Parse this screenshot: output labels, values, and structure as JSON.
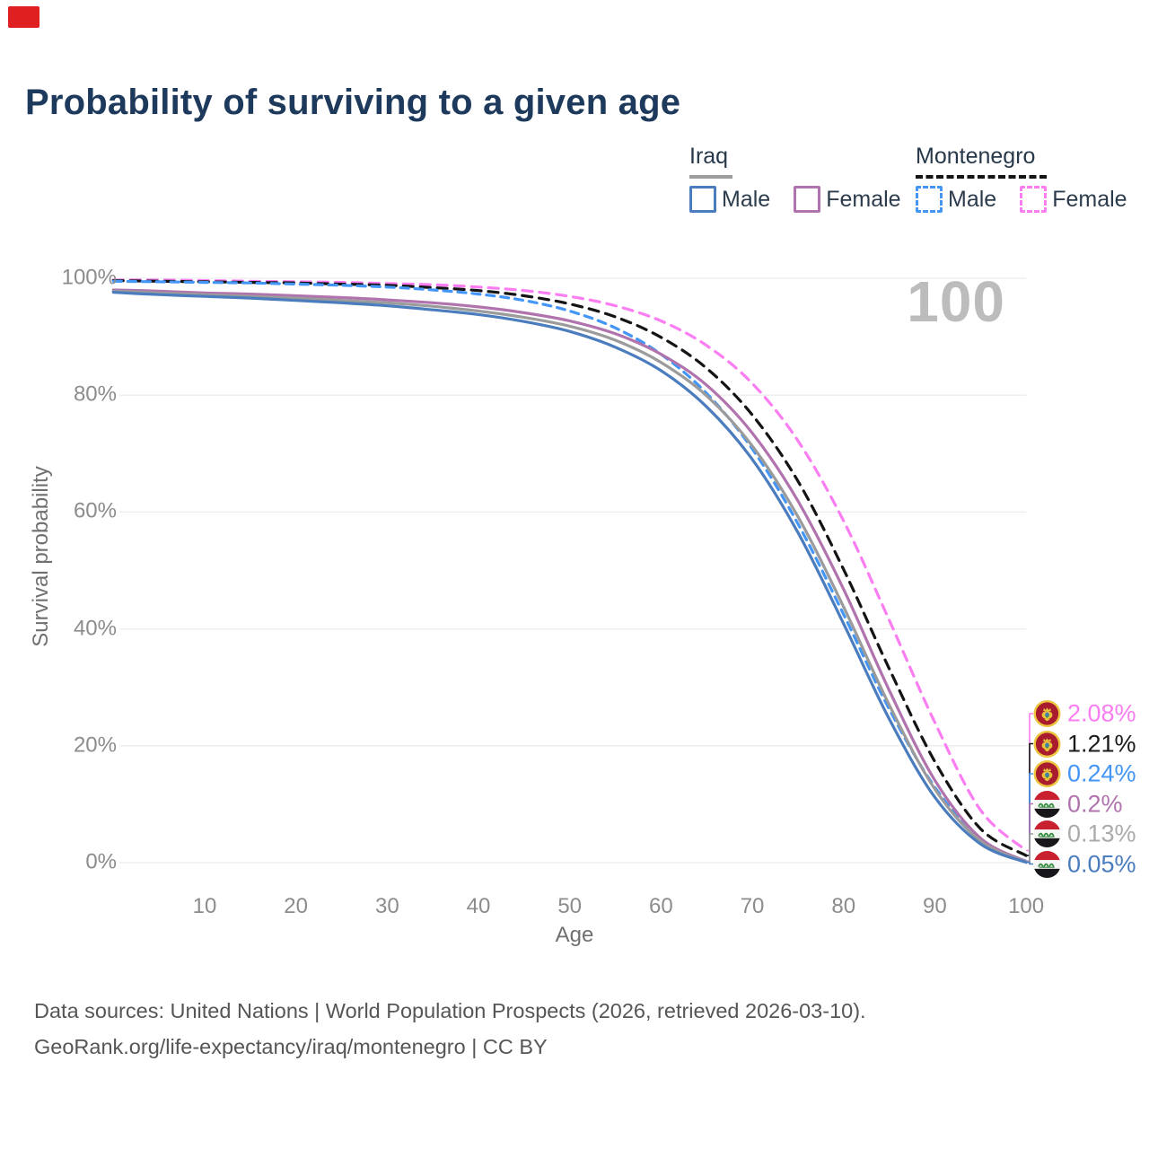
{
  "overlay_marker": {
    "color": "#e02020"
  },
  "title": "Probability of surviving to a given age",
  "watermark": "100",
  "legend": {
    "groups": [
      {
        "label": "Iraq",
        "underline_style": "solid",
        "underline_color": "#9d9d9d",
        "underline_width": 48,
        "items": [
          {
            "label": "Male",
            "color": "#4a7cbe",
            "dashed": false
          },
          {
            "label": "Female",
            "color": "#b173ae",
            "dashed": false
          }
        ]
      },
      {
        "label": "Montenegro",
        "underline_style": "dashed",
        "underline_color": "#141414",
        "underline_width": 146,
        "items": [
          {
            "label": "Male",
            "color": "#4496f6",
            "dashed": true
          },
          {
            "label": "Female",
            "color": "#fb7df2",
            "dashed": true
          }
        ]
      }
    ]
  },
  "chart_data": {
    "type": "line",
    "title": "Probability of surviving to a given age",
    "xlabel": "Age",
    "ylabel": "Survival probability",
    "xlim": [
      0,
      100
    ],
    "ylim": [
      0,
      100
    ],
    "x_ticks": [
      10,
      20,
      30,
      40,
      50,
      60,
      70,
      80,
      90,
      100
    ],
    "y_ticks": [
      0,
      20,
      40,
      60,
      80,
      100
    ],
    "y_tick_suffix": "%",
    "grid": "horizontal-only",
    "legend_position": "top-right",
    "x": [
      0,
      5,
      10,
      15,
      20,
      25,
      30,
      35,
      40,
      45,
      50,
      55,
      60,
      65,
      70,
      75,
      80,
      85,
      90,
      95,
      100
    ],
    "series": [
      {
        "name": "Montenegro Female",
        "country": "Montenegro",
        "sex": "Female",
        "color": "#fb7df2",
        "dash": true,
        "flag": "montenegro",
        "end_label": "2.08%",
        "end_label_color": "#fb7df2",
        "values": [
          99.7,
          99.7,
          99.6,
          99.5,
          99.4,
          99.3,
          99.1,
          98.9,
          98.5,
          97.9,
          96.9,
          95.3,
          92.7,
          88.5,
          82.0,
          72.2,
          58.5,
          41.5,
          24.0,
          9.0,
          2.08
        ]
      },
      {
        "name": "Montenegro Both sexes",
        "country": "Montenegro",
        "sex": "Both",
        "color": "#141414",
        "dash": true,
        "flag": "montenegro",
        "end_label": "1.21%",
        "end_label_color": "#1a1a1a",
        "values": [
          99.6,
          99.5,
          99.4,
          99.3,
          99.2,
          99.0,
          98.8,
          98.4,
          97.9,
          97.0,
          95.6,
          93.4,
          89.9,
          84.6,
          76.6,
          65.3,
          50.2,
          33.2,
          17.3,
          5.8,
          1.21
        ]
      },
      {
        "name": "Montenegro Male",
        "country": "Montenegro",
        "sex": "Male",
        "color": "#4496f6",
        "dash": true,
        "flag": "montenegro",
        "end_label": "0.24%",
        "end_label_color": "#4496f6",
        "values": [
          99.5,
          99.4,
          99.3,
          99.2,
          99.0,
          98.8,
          98.5,
          98.0,
          97.3,
          96.2,
          94.4,
          91.5,
          87.0,
          80.3,
          70.8,
          58.0,
          42.5,
          26.3,
          12.9,
          4.0,
          0.24
        ]
      },
      {
        "name": "Iraq Female",
        "country": "Iraq",
        "sex": "Female",
        "color": "#b173ae",
        "dash": false,
        "flag": "iraq",
        "end_label": "0.2%",
        "end_label_color": "#b173ae",
        "values": [
          98.0,
          97.8,
          97.5,
          97.3,
          97.0,
          96.7,
          96.3,
          95.8,
          95.1,
          94.1,
          92.7,
          90.5,
          87.0,
          81.7,
          73.5,
          61.9,
          46.8,
          29.5,
          14.1,
          4.2,
          0.2
        ]
      },
      {
        "name": "Iraq Both sexes",
        "country": "Iraq",
        "sex": "Both",
        "color": "#9b9b9b",
        "dash": false,
        "flag": "iraq",
        "end_label": "0.13%",
        "end_label_color": "#ababab",
        "values": [
          97.8,
          97.5,
          97.2,
          96.9,
          96.6,
          96.2,
          95.8,
          95.2,
          94.4,
          93.3,
          91.8,
          89.4,
          85.6,
          79.9,
          71.3,
          59.2,
          43.8,
          27.0,
          12.6,
          3.7,
          0.13
        ]
      },
      {
        "name": "Iraq Male",
        "country": "Iraq",
        "sex": "Male",
        "color": "#4a7cbe",
        "dash": false,
        "flag": "iraq",
        "end_label": "0.05%",
        "end_label_color": "#4a7cbe",
        "values": [
          97.6,
          97.2,
          96.9,
          96.6,
          96.2,
          95.8,
          95.3,
          94.6,
          93.8,
          92.6,
          90.9,
          88.2,
          84.2,
          78.0,
          69.0,
          56.5,
          40.9,
          24.6,
          11.2,
          3.2,
          0.05
        ]
      }
    ]
  },
  "footer": {
    "line1": "Data sources: United Nations | World Population Prospects (2026, retrieved 2026-03-10).",
    "line2": "GeoRank.org/life-expectancy/iraq/montenegro | CC BY"
  }
}
